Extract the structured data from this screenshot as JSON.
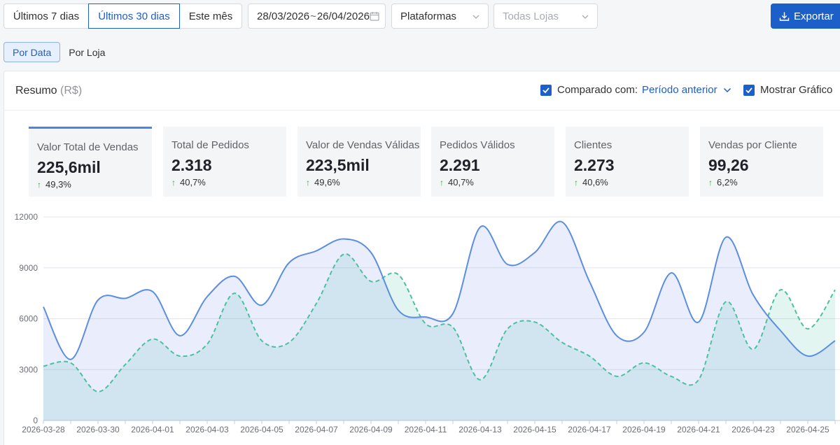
{
  "toolbar": {
    "ranges": [
      "Últimos 7 dias",
      "Últimos 30 dias",
      "Este mês"
    ],
    "active_range": "Últimos 30 dias",
    "date_start": "28/03/2026",
    "date_sep": "~",
    "date_end": "26/04/2026",
    "platforms_label": "Plataformas",
    "stores_placeholder": "Todas Lojas",
    "export_label": "Exportar"
  },
  "view_tabs": [
    "Por Data",
    "Por Loja"
  ],
  "summary": {
    "title": "Resumo",
    "unit": "(R$)",
    "compare_label": "Comparado com:",
    "compare_period": "Período anterior",
    "show_chart_label": "Mostrar Gráfico"
  },
  "kpis": [
    {
      "label": "Valor Total de Vendas",
      "value": "225,6mil",
      "change": "49,3%"
    },
    {
      "label": "Total de Pedidos",
      "value": "2.318",
      "change": "40,7%"
    },
    {
      "label": "Valor de Vendas Válidas",
      "value": "223,5mil",
      "change": "49,6%"
    },
    {
      "label": "Pedidos Válidos",
      "value": "2.291",
      "change": "40,7%"
    },
    {
      "label": "Clientes",
      "value": "2.273",
      "change": "40,6%"
    },
    {
      "label": "Vendas por Cliente",
      "value": "99,26",
      "change": "6,2%"
    }
  ],
  "colors": {
    "accent": "#1d5fc9",
    "current_line": "#5b8ee0",
    "previous_line": "#4cc0a0",
    "up": "#2fae3c"
  },
  "chart_data": {
    "type": "area",
    "ylim": [
      0,
      12000
    ],
    "yticks": [
      "0",
      "3000",
      "6000",
      "9000",
      "12000"
    ],
    "x": [
      "2026-03-28",
      "2026-03-29",
      "2026-03-30",
      "2026-03-31",
      "2026-04-01",
      "2026-04-02",
      "2026-04-03",
      "2026-04-04",
      "2026-04-05",
      "2026-04-06",
      "2026-04-07",
      "2026-04-08",
      "2026-04-09",
      "2026-04-10",
      "2026-04-11",
      "2026-04-12",
      "2026-04-13",
      "2026-04-14",
      "2026-04-15",
      "2026-04-16",
      "2026-04-17",
      "2026-04-18",
      "2026-04-19",
      "2026-04-20",
      "2026-04-21",
      "2026-04-22",
      "2026-04-23",
      "2026-04-24",
      "2026-04-25",
      "2026-04-26"
    ],
    "xtick_labels": [
      "2026-03-28",
      "2026-03-30",
      "2026-04-01",
      "2026-04-03",
      "2026-04-05",
      "2026-04-07",
      "2026-04-09",
      "2026-04-11",
      "2026-04-13",
      "2026-04-15",
      "2026-04-17",
      "2026-04-19",
      "2026-04-21",
      "2026-04-23",
      "2026-04-25"
    ],
    "series": [
      {
        "values": [
          6700,
          3600,
          7100,
          7200,
          7600,
          5000,
          7300,
          8500,
          6800,
          9300,
          10000,
          10700,
          9900,
          6500,
          6100,
          6300,
          11400,
          9200,
          9900,
          11700,
          8200,
          5000,
          5200,
          8700,
          5800,
          10800,
          7400,
          5300,
          3800,
          4700
        ]
      },
      {
        "values": [
          3200,
          3400,
          1700,
          3300,
          4800,
          3800,
          4500,
          7500,
          4700,
          4600,
          6900,
          9800,
          8200,
          8600,
          5700,
          5500,
          2400,
          5400,
          5800,
          4600,
          3800,
          2600,
          3400,
          2600,
          2400,
          7000,
          4200,
          7700,
          5400,
          7700
        ]
      }
    ]
  }
}
